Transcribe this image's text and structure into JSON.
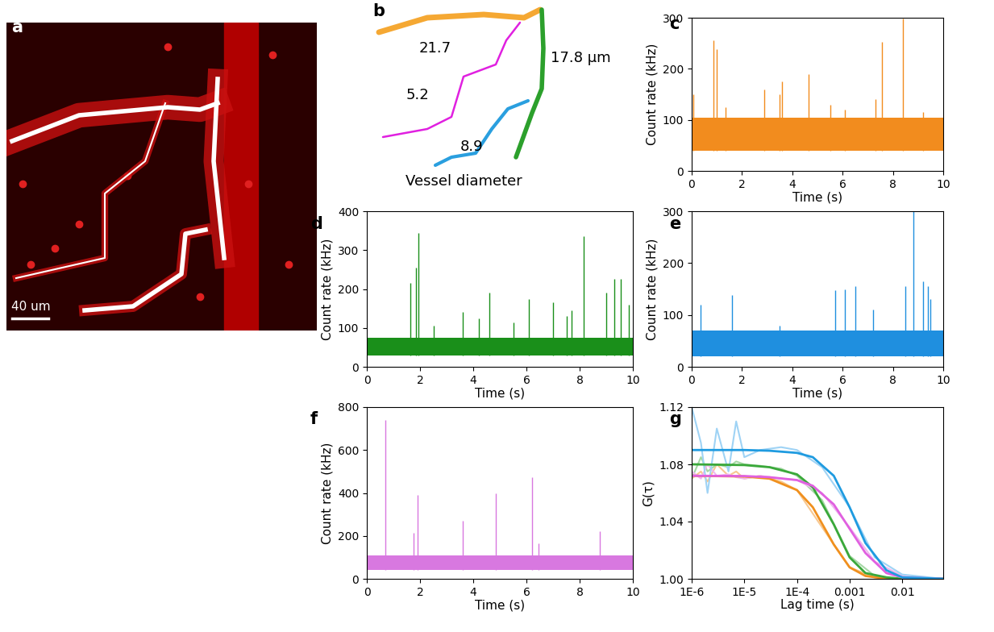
{
  "panels": {
    "a": {
      "label": "a",
      "scale_bar": "40 um"
    },
    "b": {
      "label": "b",
      "title": "Vessel diameter",
      "diameters": [
        {
          "text": "21.7",
          "color": "#f5a833"
        },
        {
          "text": "5.2",
          "color": "#e020e0"
        },
        {
          "text": "17.8 µm",
          "color": "#2ca02c"
        },
        {
          "text": "8.9",
          "color": "#2a9fdf"
        }
      ]
    }
  },
  "chart_data": [
    {
      "panel": "c",
      "type": "line",
      "color": "#f28c1e",
      "xlabel": "Time (s)",
      "ylabel": "Count rate (kHz)",
      "xlim": [
        0,
        10
      ],
      "xticks": [
        0,
        2,
        4,
        6,
        8,
        10
      ],
      "ylim": [
        0,
        300
      ],
      "yticks": [
        0,
        100,
        200,
        300
      ],
      "band": {
        "low": 40,
        "high": 105
      },
      "spikes": {
        "x": [
          0.05,
          0.85,
          1.0,
          1.35,
          2.9,
          3.5,
          3.6,
          4.65,
          5.5,
          6.1,
          7.3,
          7.55,
          8.4,
          9.2
        ],
        "values": [
          150,
          255,
          238,
          125,
          160,
          150,
          175,
          190,
          130,
          120,
          140,
          252,
          298,
          115
        ]
      }
    },
    {
      "panel": "d",
      "type": "line",
      "color": "#1a8f1a",
      "xlabel": "Time (s)",
      "ylabel": "Count rate (kHz)",
      "xlim": [
        0,
        10
      ],
      "xticks": [
        0,
        2,
        4,
        6,
        8,
        10
      ],
      "ylim": [
        0,
        400
      ],
      "yticks": [
        0,
        100,
        200,
        300,
        400
      ],
      "band": {
        "low": 30,
        "high": 75
      },
      "spikes": {
        "x": [
          1.65,
          1.85,
          1.95,
          2.5,
          3.6,
          4.2,
          4.6,
          5.5,
          6.1,
          7.0,
          7.5,
          7.7,
          8.15,
          9.0,
          9.3,
          9.55,
          9.85
        ],
        "values": [
          215,
          255,
          345,
          105,
          140,
          125,
          190,
          115,
          175,
          165,
          130,
          145,
          335,
          190,
          225,
          225,
          160
        ]
      }
    },
    {
      "panel": "e",
      "type": "line",
      "color": "#1f8fdf",
      "xlabel": "Time (s)",
      "ylabel": "Count rate (kHz)",
      "xlim": [
        0,
        10
      ],
      "xticks": [
        0,
        2,
        4,
        6,
        8,
        10
      ],
      "ylim": [
        0,
        300
      ],
      "yticks": [
        0,
        100,
        200,
        300
      ],
      "band": {
        "low": 20,
        "high": 70
      },
      "spikes": {
        "x": [
          0.35,
          1.6,
          3.5,
          5.7,
          6.1,
          6.5,
          7.2,
          8.5,
          8.8,
          9.2,
          9.4,
          9.5
        ],
        "values": [
          120,
          138,
          80,
          148,
          150,
          155,
          110,
          155,
          300,
          165,
          155,
          130
        ]
      }
    },
    {
      "panel": "f",
      "type": "line",
      "color": "#d878e0",
      "xlabel": "Time (s)",
      "ylabel": "Count rate (kHz)",
      "xlim": [
        0,
        10
      ],
      "xticks": [
        0,
        2,
        4,
        6,
        8,
        10
      ],
      "ylim": [
        0,
        800
      ],
      "yticks": [
        0,
        200,
        400,
        600,
        800
      ],
      "band": {
        "low": 40,
        "high": 110
      },
      "spikes": {
        "x": [
          0.7,
          1.75,
          1.9,
          3.6,
          4.85,
          6.2,
          6.45,
          8.75
        ],
        "values": [
          740,
          215,
          390,
          270,
          400,
          475,
          165,
          220
        ]
      }
    },
    {
      "panel": "g",
      "type": "line",
      "log": "x",
      "xlabel": "Lag time (s)",
      "ylabel": "G(τ)",
      "xlim": [
        1e-06,
        0.06
      ],
      "xticks": [
        {
          "value": 1e-06,
          "label": "1E-6"
        },
        {
          "value": 1e-05,
          "label": "1E-5"
        },
        {
          "value": 0.0001,
          "label": "1E-4"
        },
        0.001,
        0.01
      ],
      "ylim": [
        1.0,
        1.12
      ],
      "yticks": [
        {
          "value": 1.0,
          "label": "1.00"
        },
        {
          "value": 1.04,
          "label": "1.04"
        },
        {
          "value": 1.08,
          "label": "1.08"
        },
        {
          "value": 1.12,
          "label": "1.12"
        }
      ],
      "raw_x": [
        1e-06,
        1.5e-06,
        2e-06,
        3e-06,
        5e-06,
        7e-06,
        1e-05,
        2e-05,
        5e-05,
        0.0001,
        0.0003,
        0.001,
        0.003,
        0.01,
        0.06
      ],
      "fit_x": [
        1e-06,
        1e-05,
        3e-05,
        0.0001,
        0.0002,
        0.0005,
        0.001,
        0.002,
        0.005,
        0.01,
        0.06
      ],
      "series": [
        {
          "color": "#f0901e",
          "raw_color": "#f8c890",
          "raw": [
            1.07,
            1.075,
            1.068,
            1.08,
            1.072,
            1.075,
            1.07,
            1.072,
            1.068,
            1.062,
            1.036,
            1.008,
            1.001,
            1.0,
            1.0
          ],
          "fit": [
            1.072,
            1.0715,
            1.07,
            1.062,
            1.05,
            1.024,
            1.008,
            1.002,
            1.0,
            1.0,
            1.0
          ]
        },
        {
          "color": "#3aa83a",
          "raw_color": "#a6d8a6",
          "raw": [
            1.07,
            1.085,
            1.075,
            1.08,
            1.078,
            1.082,
            1.08,
            1.079,
            1.077,
            1.072,
            1.055,
            1.016,
            1.002,
            1.0,
            1.0
          ],
          "fit": [
            1.08,
            1.0795,
            1.078,
            1.073,
            1.064,
            1.038,
            1.015,
            1.004,
            1.001,
            1.0,
            1.0
          ]
        },
        {
          "color": "#e060e0",
          "raw_color": "#f0b8f0",
          "raw": [
            1.075,
            1.07,
            1.08,
            1.072,
            1.073,
            1.071,
            1.07,
            1.072,
            1.07,
            1.069,
            1.06,
            1.036,
            1.012,
            1.002,
            1.0
          ],
          "fit": [
            1.072,
            1.0718,
            1.071,
            1.069,
            1.065,
            1.052,
            1.035,
            1.018,
            1.004,
            1.001,
            1.0
          ]
        },
        {
          "color": "#1f9be0",
          "raw_color": "#9fd3f5",
          "raw": [
            1.12,
            1.095,
            1.06,
            1.105,
            1.075,
            1.11,
            1.085,
            1.09,
            1.092,
            1.09,
            1.078,
            1.05,
            1.015,
            1.003,
            1.0
          ],
          "fit": [
            1.09,
            1.09,
            1.0895,
            1.088,
            1.085,
            1.072,
            1.05,
            1.025,
            1.006,
            1.001,
            1.0
          ]
        }
      ]
    }
  ]
}
